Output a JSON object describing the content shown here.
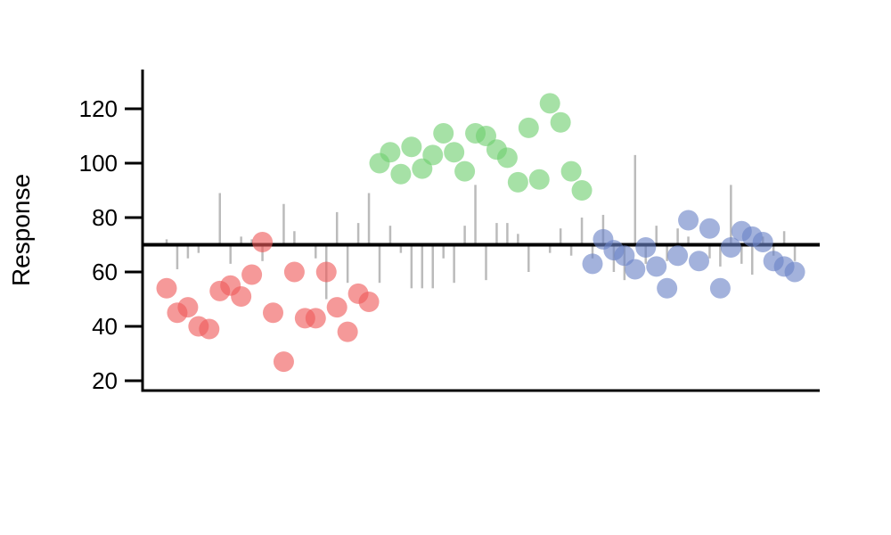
{
  "chart_data": {
    "type": "scatter",
    "title": "",
    "xlabel": "",
    "ylabel": "Response",
    "ylim": [
      20,
      130
    ],
    "y_ticks": [
      20,
      40,
      60,
      80,
      100,
      120
    ],
    "y_tick_labels": [
      "20",
      "40",
      "60",
      "80",
      "100",
      "120"
    ],
    "reference_line": 70,
    "grid": false,
    "legend": "none",
    "spike_color": "#bbbbbb",
    "reference_line_color": "#000000",
    "groups": [
      {
        "color": "#ef5b5b",
        "points": [
          {
            "x": 1,
            "y": 54
          },
          {
            "x": 2,
            "y": 45
          },
          {
            "x": 3,
            "y": 47
          },
          {
            "x": 4,
            "y": 40
          },
          {
            "x": 5,
            "y": 39
          },
          {
            "x": 6,
            "y": 53
          },
          {
            "x": 7,
            "y": 55
          },
          {
            "x": 8,
            "y": 51
          },
          {
            "x": 9,
            "y": 59
          },
          {
            "x": 10,
            "y": 71
          },
          {
            "x": 11,
            "y": 45
          },
          {
            "x": 12,
            "y": 27
          },
          {
            "x": 13,
            "y": 60
          },
          {
            "x": 14,
            "y": 43
          },
          {
            "x": 15,
            "y": 43
          },
          {
            "x": 16,
            "y": 60
          },
          {
            "x": 17,
            "y": 47
          },
          {
            "x": 18,
            "y": 38
          },
          {
            "x": 19,
            "y": 52
          },
          {
            "x": 20,
            "y": 49
          }
        ]
      },
      {
        "color": "#6fcf6f",
        "points": [
          {
            "x": 21,
            "y": 100
          },
          {
            "x": 22,
            "y": 104
          },
          {
            "x": 23,
            "y": 96
          },
          {
            "x": 24,
            "y": 106
          },
          {
            "x": 25,
            "y": 98
          },
          {
            "x": 26,
            "y": 103
          },
          {
            "x": 27,
            "y": 111
          },
          {
            "x": 28,
            "y": 104
          },
          {
            "x": 29,
            "y": 97
          },
          {
            "x": 30,
            "y": 111
          },
          {
            "x": 31,
            "y": 110
          },
          {
            "x": 32,
            "y": 105
          },
          {
            "x": 33,
            "y": 102
          },
          {
            "x": 34,
            "y": 93
          },
          {
            "x": 35,
            "y": 113
          },
          {
            "x": 36,
            "y": 94
          },
          {
            "x": 37,
            "y": 122
          },
          {
            "x": 38,
            "y": 115
          },
          {
            "x": 39,
            "y": 97
          },
          {
            "x": 40,
            "y": 90
          }
        ]
      },
      {
        "color": "#6b82c6",
        "points": [
          {
            "x": 41,
            "y": 63
          },
          {
            "x": 42,
            "y": 72
          },
          {
            "x": 43,
            "y": 68
          },
          {
            "x": 44,
            "y": 66
          },
          {
            "x": 45,
            "y": 61
          },
          {
            "x": 46,
            "y": 69
          },
          {
            "x": 47,
            "y": 62
          },
          {
            "x": 48,
            "y": 54
          },
          {
            "x": 49,
            "y": 66
          },
          {
            "x": 50,
            "y": 79
          },
          {
            "x": 51,
            "y": 64
          },
          {
            "x": 52,
            "y": 76
          },
          {
            "x": 53,
            "y": 54
          },
          {
            "x": 54,
            "y": 69
          },
          {
            "x": 55,
            "y": 75
          },
          {
            "x": 56,
            "y": 73
          },
          {
            "x": 57,
            "y": 71
          },
          {
            "x": 58,
            "y": 64
          },
          {
            "x": 59,
            "y": 62
          },
          {
            "x": 60,
            "y": 60
          }
        ]
      }
    ],
    "spikes": [
      {
        "x": 1,
        "y1": 70,
        "y2": 72
      },
      {
        "x": 2,
        "y1": 70,
        "y2": 61
      },
      {
        "x": 3,
        "y1": 70,
        "y2": 65
      },
      {
        "x": 4,
        "y1": 70,
        "y2": 67
      },
      {
        "x": 6,
        "y1": 70,
        "y2": 89
      },
      {
        "x": 7,
        "y1": 70,
        "y2": 63
      },
      {
        "x": 8,
        "y1": 70,
        "y2": 73
      },
      {
        "x": 9,
        "y1": 70,
        "y2": 72
      },
      {
        "x": 10,
        "y1": 70,
        "y2": 64
      },
      {
        "x": 12,
        "y1": 70,
        "y2": 85
      },
      {
        "x": 13,
        "y1": 70,
        "y2": 75
      },
      {
        "x": 15,
        "y1": 70,
        "y2": 65
      },
      {
        "x": 16,
        "y1": 70,
        "y2": 50
      },
      {
        "x": 17,
        "y1": 70,
        "y2": 82
      },
      {
        "x": 18,
        "y1": 70,
        "y2": 56
      },
      {
        "x": 19,
        "y1": 70,
        "y2": 78
      },
      {
        "x": 20,
        "y1": 70,
        "y2": 89
      },
      {
        "x": 21,
        "y1": 70,
        "y2": 56
      },
      {
        "x": 22,
        "y1": 70,
        "y2": 77
      },
      {
        "x": 23,
        "y1": 70,
        "y2": 67
      },
      {
        "x": 24,
        "y1": 70,
        "y2": 54
      },
      {
        "x": 25,
        "y1": 70,
        "y2": 54
      },
      {
        "x": 26,
        "y1": 70,
        "y2": 54
      },
      {
        "x": 27,
        "y1": 70,
        "y2": 65
      },
      {
        "x": 28,
        "y1": 70,
        "y2": 56
      },
      {
        "x": 29,
        "y1": 70,
        "y2": 77
      },
      {
        "x": 30,
        "y1": 70,
        "y2": 92
      },
      {
        "x": 31,
        "y1": 70,
        "y2": 57
      },
      {
        "x": 32,
        "y1": 70,
        "y2": 78
      },
      {
        "x": 33,
        "y1": 70,
        "y2": 78
      },
      {
        "x": 34,
        "y1": 70,
        "y2": 74
      },
      {
        "x": 35,
        "y1": 70,
        "y2": 60
      },
      {
        "x": 37,
        "y1": 70,
        "y2": 67
      },
      {
        "x": 38,
        "y1": 70,
        "y2": 76
      },
      {
        "x": 39,
        "y1": 70,
        "y2": 66
      },
      {
        "x": 40,
        "y1": 70,
        "y2": 80
      },
      {
        "x": 41,
        "y1": 70,
        "y2": 65
      },
      {
        "x": 42,
        "y1": 70,
        "y2": 81
      },
      {
        "x": 43,
        "y1": 70,
        "y2": 60
      },
      {
        "x": 44,
        "y1": 70,
        "y2": 57
      },
      {
        "x": 45,
        "y1": 70,
        "y2": 103
      },
      {
        "x": 46,
        "y1": 70,
        "y2": 63
      },
      {
        "x": 47,
        "y1": 70,
        "y2": 77
      },
      {
        "x": 48,
        "y1": 70,
        "y2": 64
      },
      {
        "x": 49,
        "y1": 70,
        "y2": 76
      },
      {
        "x": 50,
        "y1": 70,
        "y2": 73
      },
      {
        "x": 52,
        "y1": 70,
        "y2": 65
      },
      {
        "x": 53,
        "y1": 70,
        "y2": 62
      },
      {
        "x": 54,
        "y1": 70,
        "y2": 92
      },
      {
        "x": 55,
        "y1": 70,
        "y2": 63
      },
      {
        "x": 56,
        "y1": 70,
        "y2": 59
      },
      {
        "x": 57,
        "y1": 70,
        "y2": 73
      },
      {
        "x": 58,
        "y1": 70,
        "y2": 66
      },
      {
        "x": 59,
        "y1": 70,
        "y2": 75
      },
      {
        "x": 60,
        "y1": 70,
        "y2": 64
      }
    ]
  }
}
